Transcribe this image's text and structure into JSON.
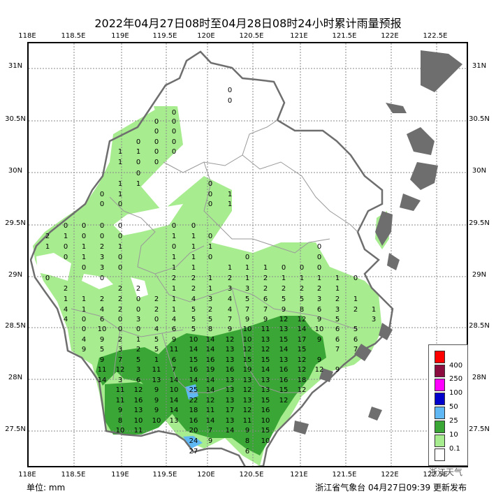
{
  "title": "2022年04月27日08时至04月28日08时24小时累计雨量预报",
  "lon_labels": [
    "118E",
    "118.5E",
    "119E",
    "119.5E",
    "120E",
    "120.5E",
    "121E",
    "121.5E",
    "122E",
    "122.5E"
  ],
  "lat_labels": [
    "31N",
    "30.5N",
    "30N",
    "29.5N",
    "29N",
    "28.5N",
    "28N",
    "27.5N"
  ],
  "unit": "单位: mm",
  "footer": "浙江省气象台 04月27日09:39 更新发布",
  "watermark": "浙江天气",
  "legend": [
    {
      "label": "400",
      "color": "#ff0000"
    },
    {
      "label": "250",
      "color": "#8b0c3e"
    },
    {
      "label": "100",
      "color": "#ff00ff"
    },
    {
      "label": "50",
      "color": "#0000cd"
    },
    {
      "label": "25",
      "color": "#5fb8f4"
    },
    {
      "label": "10",
      "color": "#3aa635"
    },
    {
      "label": "0.1",
      "color": "#a8ec90"
    },
    {
      "label": "",
      "color": "#ffffff"
    }
  ],
  "rain_values": [
    [
      0,
      327,
      126
    ],
    [
      0,
      327,
      141
    ],
    [
      0,
      247,
      158
    ],
    [
      0,
      222,
      171
    ],
    [
      0,
      247,
      171
    ],
    [
      0,
      222,
      185
    ],
    [
      0,
      247,
      185
    ],
    [
      0,
      196,
      200
    ],
    [
      0,
      222,
      200
    ],
    [
      0,
      247,
      200
    ],
    [
      1,
      170,
      214
    ],
    [
      1,
      196,
      214
    ],
    [
      0,
      222,
      214
    ],
    [
      0,
      247,
      214
    ],
    [
      1,
      170,
      229
    ],
    [
      0,
      196,
      229
    ],
    [
      0,
      222,
      229
    ],
    [
      0,
      196,
      245
    ],
    [
      0,
      299,
      260
    ],
    [
      1,
      196,
      260
    ],
    [
      1,
      170,
      260
    ],
    [
      0,
      299,
      275
    ],
    [
      1,
      327,
      275
    ],
    [
      0,
      144,
      275
    ],
    [
      1,
      170,
      275
    ],
    [
      0,
      299,
      289
    ],
    [
      1,
      327,
      289
    ],
    [
      0,
      144,
      289
    ],
    [
      0,
      170,
      289
    ],
    [
      0,
      92,
      320
    ],
    [
      0,
      118,
      320
    ],
    [
      0,
      144,
      320
    ],
    [
      0,
      170,
      320
    ],
    [
      0,
      247,
      320
    ],
    [
      0,
      275,
      320
    ],
    [
      2,
      66,
      335
    ],
    [
      1,
      92,
      335
    ],
    [
      0,
      118,
      335
    ],
    [
      0,
      144,
      335
    ],
    [
      0,
      170,
      335
    ],
    [
      1,
      247,
      335
    ],
    [
      1,
      275,
      335
    ],
    [
      0,
      299,
      335
    ],
    [
      1,
      66,
      350
    ],
    [
      0,
      92,
      350
    ],
    [
      1,
      118,
      350
    ],
    [
      2,
      144,
      350
    ],
    [
      1,
      170,
      350
    ],
    [
      0,
      247,
      350
    ],
    [
      1,
      275,
      350
    ],
    [
      1,
      299,
      350
    ],
    [
      0,
      455,
      350
    ],
    [
      0,
      92,
      365
    ],
    [
      1,
      118,
      365
    ],
    [
      3,
      144,
      365
    ],
    [
      0,
      170,
      365
    ],
    [
      1,
      247,
      365
    ],
    [
      1,
      275,
      365
    ],
    [
      0,
      299,
      365
    ],
    [
      0,
      352,
      365
    ],
    [
      0,
      455,
      365
    ],
    [
      0,
      118,
      380
    ],
    [
      3,
      144,
      380
    ],
    [
      0,
      170,
      380
    ],
    [
      1,
      247,
      380
    ],
    [
      1,
      275,
      380
    ],
    [
      1,
      327,
      380
    ],
    [
      1,
      352,
      380
    ],
    [
      1,
      378,
      380
    ],
    [
      0,
      404,
      380
    ],
    [
      0,
      430,
      380
    ],
    [
      0,
      455,
      380
    ],
    [
      0,
      66,
      395
    ],
    [
      0,
      144,
      395
    ],
    [
      2,
      247,
      395
    ],
    [
      2,
      275,
      395
    ],
    [
      1,
      299,
      395
    ],
    [
      2,
      327,
      395
    ],
    [
      1,
      352,
      395
    ],
    [
      2,
      378,
      395
    ],
    [
      1,
      404,
      395
    ],
    [
      1,
      430,
      395
    ],
    [
      1,
      455,
      395
    ],
    [
      1,
      481,
      395
    ],
    [
      0,
      507,
      395
    ],
    [
      2,
      92,
      410
    ],
    [
      2,
      170,
      410
    ],
    [
      2,
      196,
      410
    ],
    [
      1,
      247,
      410
    ],
    [
      2,
      275,
      410
    ],
    [
      1,
      299,
      410
    ],
    [
      3,
      327,
      410
    ],
    [
      3,
      352,
      410
    ],
    [
      2,
      378,
      410
    ],
    [
      2,
      404,
      410
    ],
    [
      2,
      430,
      410
    ],
    [
      2,
      455,
      410
    ],
    [
      1,
      481,
      410
    ],
    [
      1,
      92,
      425
    ],
    [
      1,
      118,
      425
    ],
    [
      2,
      144,
      425
    ],
    [
      2,
      170,
      425
    ],
    [
      0,
      196,
      425
    ],
    [
      2,
      222,
      425
    ],
    [
      1,
      247,
      425
    ],
    [
      4,
      275,
      425
    ],
    [
      3,
      299,
      425
    ],
    [
      4,
      327,
      425
    ],
    [
      5,
      352,
      425
    ],
    [
      6,
      378,
      425
    ],
    [
      5,
      404,
      425
    ],
    [
      5,
      430,
      425
    ],
    [
      3,
      455,
      425
    ],
    [
      2,
      481,
      425
    ],
    [
      1,
      507,
      425
    ],
    [
      4,
      92,
      440
    ],
    [
      1,
      118,
      440
    ],
    [
      4,
      144,
      440
    ],
    [
      2,
      170,
      440
    ],
    [
      0,
      196,
      440
    ],
    [
      2,
      222,
      440
    ],
    [
      1,
      247,
      440
    ],
    [
      5,
      275,
      440
    ],
    [
      2,
      299,
      440
    ],
    [
      4,
      327,
      440
    ],
    [
      7,
      352,
      440
    ],
    [
      7,
      378,
      440
    ],
    [
      9,
      404,
      440
    ],
    [
      8,
      430,
      440
    ],
    [
      6,
      455,
      440
    ],
    [
      3,
      481,
      440
    ],
    [
      2,
      507,
      440
    ],
    [
      1,
      533,
      440
    ],
    [
      4,
      92,
      454
    ],
    [
      0,
      118,
      454
    ],
    [
      6,
      144,
      454
    ],
    [
      0,
      170,
      454
    ],
    [
      3,
      196,
      454
    ],
    [
      0,
      222,
      454
    ],
    [
      4,
      247,
      454
    ],
    [
      5,
      275,
      454
    ],
    [
      5,
      299,
      454
    ],
    [
      7,
      327,
      454
    ],
    [
      9,
      352,
      454
    ],
    [
      9,
      378,
      454
    ],
    [
      12,
      404,
      454
    ],
    [
      12,
      430,
      454
    ],
    [
      9,
      455,
      454
    ],
    [
      5,
      481,
      454
    ],
    [
      3,
      533,
      454
    ],
    [
      0,
      118,
      468
    ],
    [
      10,
      144,
      468
    ],
    [
      0,
      170,
      468
    ],
    [
      0,
      196,
      468
    ],
    [
      4,
      222,
      468
    ],
    [
      6,
      247,
      468
    ],
    [
      5,
      275,
      468
    ],
    [
      8,
      299,
      468
    ],
    [
      9,
      327,
      468
    ],
    [
      10,
      352,
      468
    ],
    [
      11,
      378,
      468
    ],
    [
      13,
      404,
      468
    ],
    [
      14,
      430,
      468
    ],
    [
      10,
      455,
      468
    ],
    [
      6,
      481,
      468
    ],
    [
      5,
      507,
      468
    ],
    [
      4,
      118,
      483
    ],
    [
      9,
      144,
      483
    ],
    [
      2,
      170,
      483
    ],
    [
      1,
      196,
      483
    ],
    [
      5,
      222,
      483
    ],
    [
      9,
      247,
      483
    ],
    [
      10,
      275,
      483
    ],
    [
      14,
      299,
      483
    ],
    [
      12,
      327,
      483
    ],
    [
      10,
      352,
      483
    ],
    [
      13,
      378,
      483
    ],
    [
      15,
      404,
      483
    ],
    [
      17,
      430,
      483
    ],
    [
      9,
      455,
      483
    ],
    [
      6,
      481,
      483
    ],
    [
      6,
      507,
      483
    ],
    [
      9,
      118,
      497
    ],
    [
      5,
      144,
      497
    ],
    [
      3,
      170,
      497
    ],
    [
      2,
      196,
      497
    ],
    [
      5,
      222,
      497
    ],
    [
      11,
      247,
      497
    ],
    [
      14,
      275,
      497
    ],
    [
      14,
      299,
      497
    ],
    [
      13,
      327,
      497
    ],
    [
      12,
      352,
      497
    ],
    [
      12,
      378,
      497
    ],
    [
      14,
      404,
      497
    ],
    [
      15,
      430,
      497
    ],
    [
      7,
      481,
      497
    ],
    [
      7,
      507,
      497
    ],
    [
      9,
      144,
      512
    ],
    [
      7,
      170,
      512
    ],
    [
      5,
      196,
      512
    ],
    [
      1,
      222,
      512
    ],
    [
      6,
      247,
      512
    ],
    [
      15,
      275,
      512
    ],
    [
      16,
      299,
      512
    ],
    [
      13,
      327,
      512
    ],
    [
      15,
      352,
      512
    ],
    [
      15,
      378,
      512
    ],
    [
      13,
      404,
      512
    ],
    [
      12,
      430,
      512
    ],
    [
      9,
      455,
      512
    ],
    [
      11,
      144,
      526
    ],
    [
      12,
      170,
      526
    ],
    [
      3,
      196,
      526
    ],
    [
      11,
      222,
      526
    ],
    [
      7,
      247,
      526
    ],
    [
      16,
      275,
      526
    ],
    [
      19,
      299,
      526
    ],
    [
      16,
      327,
      526
    ],
    [
      19,
      352,
      526
    ],
    [
      14,
      378,
      526
    ],
    [
      16,
      404,
      526
    ],
    [
      12,
      430,
      526
    ],
    [
      12,
      455,
      526
    ],
    [
      9,
      481,
      526
    ],
    [
      14,
      144,
      541
    ],
    [
      3,
      170,
      541
    ],
    [
      6,
      196,
      541
    ],
    [
      13,
      222,
      541
    ],
    [
      14,
      247,
      541
    ],
    [
      14,
      275,
      541
    ],
    [
      14,
      299,
      541
    ],
    [
      13,
      327,
      541
    ],
    [
      13,
      352,
      541
    ],
    [
      13,
      378,
      541
    ],
    [
      16,
      404,
      541
    ],
    [
      18,
      430,
      541
    ],
    [
      11,
      170,
      555
    ],
    [
      12,
      196,
      555
    ],
    [
      9,
      222,
      555
    ],
    [
      10,
      247,
      555
    ],
    [
      25,
      275,
      555
    ],
    [
      14,
      299,
      555
    ],
    [
      13,
      327,
      555
    ],
    [
      12,
      352,
      555
    ],
    [
      13,
      378,
      555
    ],
    [
      15,
      404,
      555
    ],
    [
      12,
      430,
      555
    ],
    [
      11,
      170,
      570
    ],
    [
      16,
      196,
      570
    ],
    [
      9,
      222,
      570
    ],
    [
      14,
      247,
      570
    ],
    [
      22,
      275,
      570
    ],
    [
      12,
      299,
      570
    ],
    [
      13,
      327,
      570
    ],
    [
      13,
      352,
      570
    ],
    [
      15,
      378,
      570
    ],
    [
      12,
      404,
      570
    ],
    [
      9,
      170,
      584
    ],
    [
      13,
      196,
      584
    ],
    [
      9,
      222,
      584
    ],
    [
      14,
      247,
      584
    ],
    [
      18,
      275,
      584
    ],
    [
      11,
      299,
      584
    ],
    [
      17,
      327,
      584
    ],
    [
      12,
      352,
      584
    ],
    [
      16,
      378,
      584
    ],
    [
      8,
      170,
      599
    ],
    [
      10,
      196,
      599
    ],
    [
      10,
      222,
      599
    ],
    [
      13,
      247,
      599
    ],
    [
      16,
      275,
      599
    ],
    [
      14,
      299,
      599
    ],
    [
      13,
      327,
      599
    ],
    [
      11,
      352,
      599
    ],
    [
      10,
      378,
      599
    ],
    [
      10,
      170,
      613
    ],
    [
      11,
      196,
      613
    ],
    [
      20,
      275,
      613
    ],
    [
      7,
      299,
      613
    ],
    [
      14,
      327,
      613
    ],
    [
      9,
      352,
      613
    ],
    [
      15,
      378,
      613
    ],
    [
      24,
      275,
      628
    ],
    [
      9,
      299,
      628
    ],
    [
      8,
      352,
      628
    ],
    [
      10,
      378,
      628
    ],
    [
      27,
      275,
      643
    ],
    [
      6,
      352,
      643
    ]
  ]
}
